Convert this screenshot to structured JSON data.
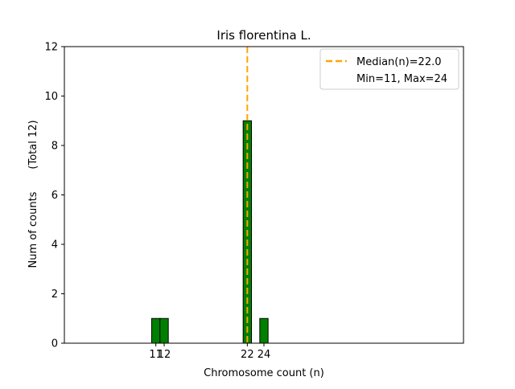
{
  "chart_data": {
    "type": "bar",
    "title": "Iris florentina L.",
    "xlabel": "Chromosome count (n)",
    "ylabel": "Num of counts",
    "ylabel_secondary": "(Total 12)",
    "xlim": [
      0,
      48
    ],
    "ylim": [
      0,
      12
    ],
    "yticks": [
      0,
      2,
      4,
      6,
      8,
      10,
      12
    ],
    "xticks": [
      11,
      12,
      22,
      24
    ],
    "bar_width": 1,
    "bar_color": "#008000",
    "bar_edge_color": "#000000",
    "categories": [
      11,
      12,
      22,
      24
    ],
    "values": [
      1,
      1,
      9,
      1
    ],
    "median": 22.0,
    "median_color": "#FFA500",
    "legend": {
      "placement": "top-right",
      "entries": [
        "Median(n)=22.0",
        "Min=11, Max=24"
      ]
    },
    "grid": false
  }
}
